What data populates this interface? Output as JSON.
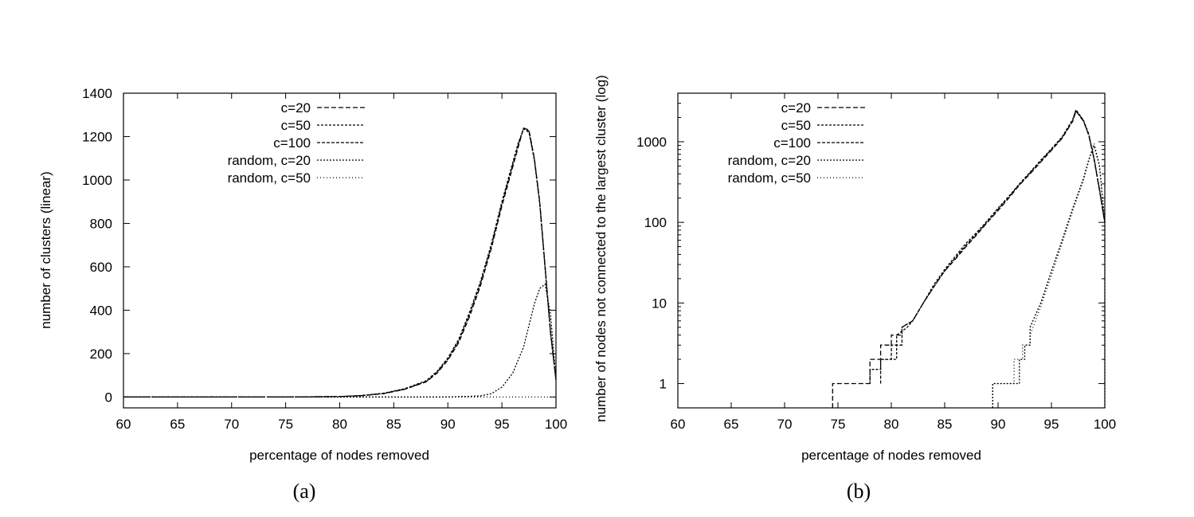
{
  "chart_data": [
    {
      "panel": "a",
      "type": "line",
      "caption": "(a)",
      "xlabel": "percentage of nodes removed",
      "ylabel": "number of clusters (linear)",
      "xlim": [
        60,
        100
      ],
      "ylim": [
        -50,
        1400
      ],
      "yscale": "linear",
      "xticks": [
        "60",
        "65",
        "70",
        "75",
        "80",
        "85",
        "90",
        "95",
        "100"
      ],
      "yticks": [
        "0",
        "200",
        "400",
        "600",
        "800",
        "1000",
        "1200",
        "1400"
      ],
      "ytick_values": [
        0,
        200,
        400,
        600,
        800,
        1000,
        1200,
        1400
      ],
      "legend_position": "top-left",
      "grid": false,
      "series": [
        {
          "name": "c=20",
          "dash": "6,3",
          "x": [
            60,
            75,
            80,
            82,
            84,
            86,
            88,
            89,
            90,
            91,
            92,
            93,
            94,
            95,
            96,
            96.5,
            97,
            97.5,
            98,
            98.5,
            99,
            99.5,
            100
          ],
          "y": [
            0,
            0,
            2,
            6,
            15,
            35,
            70,
            110,
            170,
            250,
            370,
            510,
            680,
            880,
            1060,
            1150,
            1240,
            1230,
            1100,
            900,
            600,
            300,
            80
          ]
        },
        {
          "name": "c=50",
          "dash": "3,2",
          "x": [
            60,
            75,
            80,
            82,
            84,
            86,
            88,
            89,
            90,
            91,
            92,
            93,
            94,
            95,
            96,
            96.5,
            97,
            97.5,
            98,
            98.5,
            99,
            99.5,
            100
          ],
          "y": [
            0,
            0,
            2,
            7,
            17,
            38,
            75,
            118,
            180,
            265,
            390,
            530,
            700,
            900,
            1080,
            1170,
            1235,
            1220,
            1090,
            890,
            590,
            290,
            80
          ]
        },
        {
          "name": "c=100",
          "dash": "4,2",
          "x": [
            60,
            75,
            80,
            82,
            84,
            86,
            88,
            89,
            90,
            91,
            92,
            93,
            94,
            95,
            96,
            96.5,
            97,
            97.5,
            98,
            98.5,
            99,
            99.5,
            100
          ],
          "y": [
            0,
            0,
            2,
            6,
            16,
            36,
            72,
            114,
            175,
            258,
            380,
            520,
            690,
            890,
            1070,
            1160,
            1238,
            1225,
            1095,
            895,
            595,
            295,
            80
          ]
        },
        {
          "name": "random, c=20",
          "dash": "2,2",
          "x": [
            60,
            90,
            93,
            94,
            95,
            96,
            97,
            97.5,
            98,
            98.5,
            99,
            99.5,
            100
          ],
          "y": [
            0,
            0,
            5,
            15,
            45,
            110,
            230,
            330,
            430,
            500,
            520,
            380,
            80
          ]
        },
        {
          "name": "random, c=50",
          "dash": "1,3",
          "x": [
            60,
            80,
            90,
            95,
            98,
            100
          ],
          "y": [
            0,
            0,
            0,
            0,
            0,
            0
          ]
        }
      ]
    },
    {
      "panel": "b",
      "type": "line",
      "caption": "(b)",
      "xlabel": "percentage of nodes removed",
      "ylabel": "number of nodes not connected to the largest cluster (log)",
      "xlim": [
        60,
        100
      ],
      "ylim": [
        0.5,
        4000
      ],
      "yscale": "log",
      "xticks": [
        "60",
        "65",
        "70",
        "75",
        "80",
        "85",
        "90",
        "95",
        "100"
      ],
      "yticks": [
        "1",
        "10",
        "100",
        "1000"
      ],
      "ytick_values": [
        1,
        10,
        100,
        1000
      ],
      "legend_position": "top-left",
      "grid": false,
      "series": [
        {
          "name": "c=20",
          "dash": "6,3",
          "x": [
            74.5,
            74.5,
            78,
            78,
            79,
            79,
            80,
            80,
            81,
            81,
            82,
            83,
            84,
            85,
            86,
            87,
            88,
            89,
            90,
            91,
            92,
            93,
            94,
            95,
            96,
            97,
            97.3,
            98,
            98.5,
            99,
            99.5,
            100
          ],
          "y": [
            0.5,
            1,
            1,
            2,
            2,
            3,
            3,
            4,
            4,
            5,
            6,
            10,
            16,
            25,
            35,
            50,
            70,
            100,
            140,
            200,
            290,
            400,
            560,
            780,
            1100,
            1800,
            2400,
            1800,
            1200,
            600,
            250,
            100
          ]
        },
        {
          "name": "c=50",
          "dash": "3,2",
          "x": [
            78,
            78,
            79,
            79,
            80.5,
            80.5,
            81.5,
            82,
            83,
            84,
            85,
            86,
            87,
            88,
            89,
            90,
            91,
            92,
            93,
            94,
            95,
            96,
            97,
            97.3,
            98,
            98.5,
            99,
            99.5,
            100
          ],
          "y": [
            1,
            1.5,
            1.5,
            2,
            2,
            4,
            5,
            6,
            10,
            17,
            26,
            38,
            55,
            75,
            105,
            150,
            210,
            300,
            420,
            590,
            820,
            1150,
            1900,
            2500,
            1850,
            1250,
            620,
            260,
            100
          ]
        },
        {
          "name": "c=100",
          "dash": "4,2",
          "x": [
            79,
            79,
            80,
            80,
            81,
            81,
            82,
            83,
            84,
            85,
            86,
            87,
            88,
            89,
            90,
            91,
            92,
            93,
            94,
            95,
            96,
            97,
            97.3,
            98,
            98.5,
            99,
            99.5,
            100
          ],
          "y": [
            1,
            2,
            2,
            3,
            3,
            5,
            6,
            10,
            16,
            25,
            36,
            52,
            72,
            102,
            145,
            205,
            295,
            410,
            575,
            800,
            1120,
            1850,
            2450,
            1820,
            1220,
            610,
            255,
            100
          ]
        },
        {
          "name": "random, c=20",
          "dash": "2,2",
          "x": [
            89.5,
            89.5,
            92,
            92,
            92.5,
            92.5,
            93,
            93,
            94,
            95,
            96,
            97,
            98,
            98.5,
            99,
            99.5,
            100
          ],
          "y": [
            0.5,
            1,
            1,
            2,
            2,
            3,
            3,
            5,
            10,
            25,
            60,
            150,
            350,
            600,
            900,
            500,
            100
          ]
        },
        {
          "name": "random, c=50",
          "dash": "1,3",
          "x": [
            89.5,
            89.5,
            91.5,
            91.5,
            92.3,
            92.3,
            93,
            93,
            94,
            95,
            96,
            97,
            98,
            98.5,
            99,
            99.5,
            100,
            100
          ],
          "y": [
            0.5,
            1,
            1,
            2,
            2,
            3,
            3,
            4,
            9,
            22,
            55,
            140,
            330,
            580,
            950,
            520,
            100,
            0.5
          ]
        }
      ]
    }
  ]
}
